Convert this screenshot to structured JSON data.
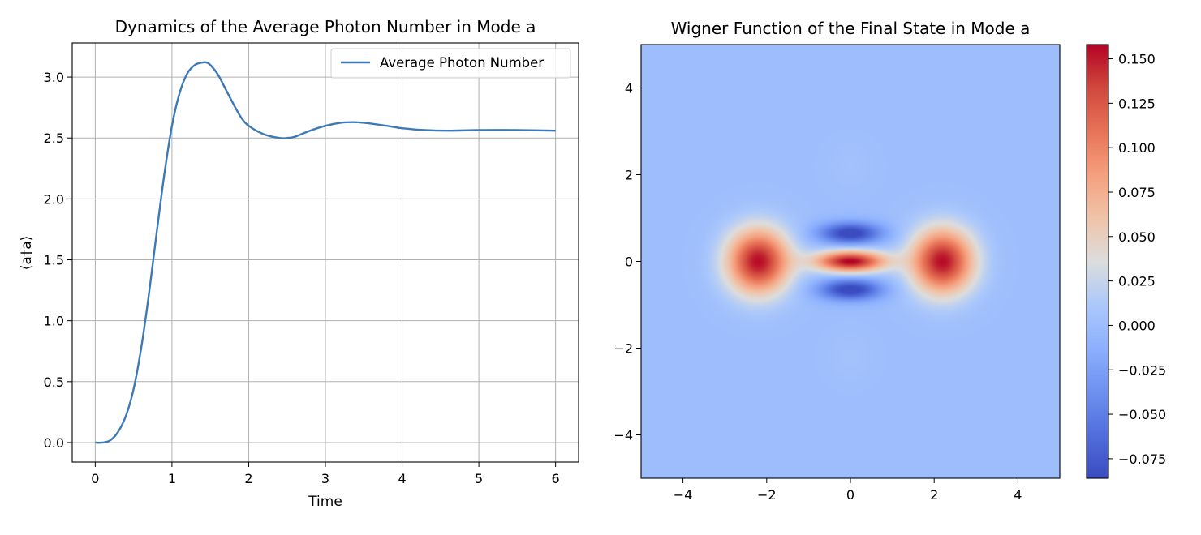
{
  "chart_data": [
    {
      "type": "line",
      "title": "Dynamics of the Average Photon Number in Mode a",
      "xlabel": "Time",
      "ylabel": "⟨a†a⟩",
      "xlim": [
        -0.3,
        6.3
      ],
      "ylim": [
        -0.16,
        3.28
      ],
      "xticks": [
        0,
        1,
        2,
        3,
        4,
        5,
        6
      ],
      "xtick_labels": [
        "0",
        "1",
        "2",
        "3",
        "4",
        "5",
        "6"
      ],
      "yticks": [
        0.0,
        0.5,
        1.0,
        1.5,
        2.0,
        2.5,
        3.0
      ],
      "ytick_labels": [
        "0.0",
        "0.5",
        "1.0",
        "1.5",
        "2.0",
        "2.5",
        "3.0"
      ],
      "grid": true,
      "legend_position": "top-right",
      "series": [
        {
          "name": "Average Photon Number",
          "color": "#3d7ab5",
          "x": [
            0,
            0.1,
            0.2,
            0.3,
            0.4,
            0.5,
            0.6,
            0.7,
            0.8,
            0.9,
            1.0,
            1.1,
            1.2,
            1.3,
            1.4,
            1.45,
            1.5,
            1.6,
            1.7,
            1.8,
            1.9,
            2.0,
            2.2,
            2.4,
            2.5,
            2.6,
            2.8,
            3.0,
            3.2,
            3.35,
            3.5,
            3.8,
            4.0,
            4.3,
            4.6,
            5.0,
            5.5,
            6.0
          ],
          "y": [
            0.0,
            0.0,
            0.02,
            0.09,
            0.22,
            0.44,
            0.78,
            1.22,
            1.72,
            2.2,
            2.6,
            2.87,
            3.03,
            3.1,
            3.12,
            3.12,
            3.1,
            3.02,
            2.9,
            2.78,
            2.67,
            2.6,
            2.53,
            2.5,
            2.5,
            2.51,
            2.56,
            2.6,
            2.625,
            2.63,
            2.625,
            2.6,
            2.58,
            2.565,
            2.56,
            2.565,
            2.565,
            2.56
          ]
        }
      ]
    },
    {
      "type": "heatmap",
      "title": "Wigner Function of the Final State in Mode a",
      "xlabel": "",
      "ylabel": "",
      "xlim": [
        -5,
        5
      ],
      "ylim": [
        -5,
        5
      ],
      "xticks": [
        -4,
        -2,
        0,
        2,
        4
      ],
      "xtick_labels": [
        "−4",
        "−2",
        "0",
        "2",
        "4"
      ],
      "yticks": [
        -4,
        -2,
        0,
        2,
        4
      ],
      "ytick_labels": [
        "−4",
        "−2",
        "0",
        "2",
        "4"
      ],
      "colormap": "coolwarm",
      "vmin": -0.086,
      "vmax": 0.158,
      "colorbar": {
        "ticks": [
          -0.075,
          -0.05,
          -0.025,
          0.0,
          0.025,
          0.05,
          0.075,
          0.1,
          0.125,
          0.15
        ],
        "tick_labels": [
          "−0.075",
          "−0.050",
          "−0.025",
          "0.000",
          "0.025",
          "0.050",
          "0.075",
          "0.100",
          "0.125",
          "0.150"
        ]
      },
      "features": [
        {
          "kind": "positive-lobe",
          "x": -2.2,
          "y": 0,
          "peak": 0.155
        },
        {
          "kind": "positive-lobe",
          "x": 2.2,
          "y": 0,
          "peak": 0.155
        },
        {
          "kind": "interference-fringe",
          "x": 0,
          "y": 0,
          "peak": 0.15
        },
        {
          "kind": "negative-fringe",
          "x": 0,
          "y": 0.65,
          "peak": -0.086
        },
        {
          "kind": "negative-fringe",
          "x": 0,
          "y": -0.65,
          "peak": -0.086
        }
      ]
    }
  ]
}
